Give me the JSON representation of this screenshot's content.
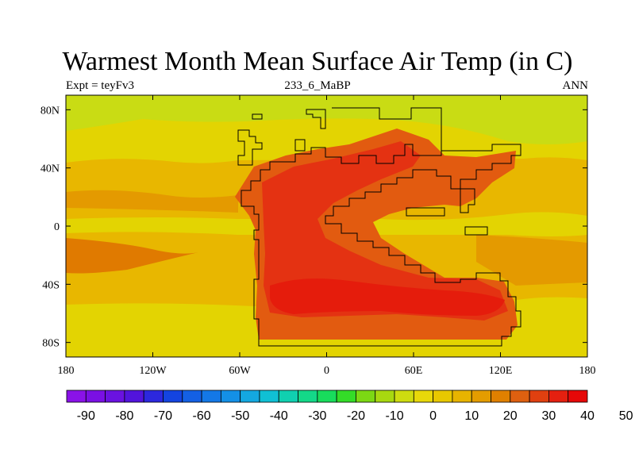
{
  "title": "Warmest Month Mean Surface Air Temp (in C)",
  "left_string": "Expt = teyFv3",
  "center_string": "233_6_MaBP",
  "right_string": "ANN",
  "map": {
    "lon_range": [
      -180,
      180
    ],
    "lat_range": [
      -90,
      90
    ],
    "x_ticks": [
      {
        "value": -180,
        "label": "180"
      },
      {
        "value": -120,
        "label": "120W"
      },
      {
        "value": -60,
        "label": "60W"
      },
      {
        "value": 0,
        "label": "0"
      },
      {
        "value": 60,
        "label": "60E"
      },
      {
        "value": 120,
        "label": "120E"
      },
      {
        "value": 180,
        "label": "180"
      }
    ],
    "y_ticks": [
      {
        "value": 80,
        "label": "80N"
      },
      {
        "value": 40,
        "label": "40N"
      },
      {
        "value": 0,
        "label": "0"
      },
      {
        "value": -40,
        "label": "40S"
      },
      {
        "value": -80,
        "label": "80S"
      }
    ],
    "colors": {
      "polar_green": "#c9dc14",
      "ocean_yellow": "#e3d402",
      "light_orange": "#e8b700",
      "orange": "#e49a00",
      "deep_orange": "#e07a00",
      "land_red_orange": "#e25b10",
      "land_red": "#e43212",
      "hot_red": "#e51c0c",
      "coastline": "#000000"
    }
  },
  "colorbar": {
    "labels": [
      "-90",
      "-80",
      "-70",
      "-60",
      "-50",
      "-40",
      "-30",
      "-20",
      "-10",
      "0",
      "10",
      "20",
      "30",
      "40",
      "50"
    ],
    "colors": [
      "#8a12e8",
      "#7a10e4",
      "#6a12e0",
      "#5214dc",
      "#2c28de",
      "#1444e0",
      "#1460e4",
      "#1478e6",
      "#1490e6",
      "#14a8e0",
      "#10c0d4",
      "#10d0b0",
      "#14d888",
      "#18dc5c",
      "#34dc28",
      "#7cd814",
      "#a8d810",
      "#cedc10",
      "#e8d80a",
      "#e8c800",
      "#e8b400",
      "#e49c00",
      "#e08000",
      "#de6010",
      "#e04010",
      "#e42010",
      "#e60808"
    ]
  }
}
